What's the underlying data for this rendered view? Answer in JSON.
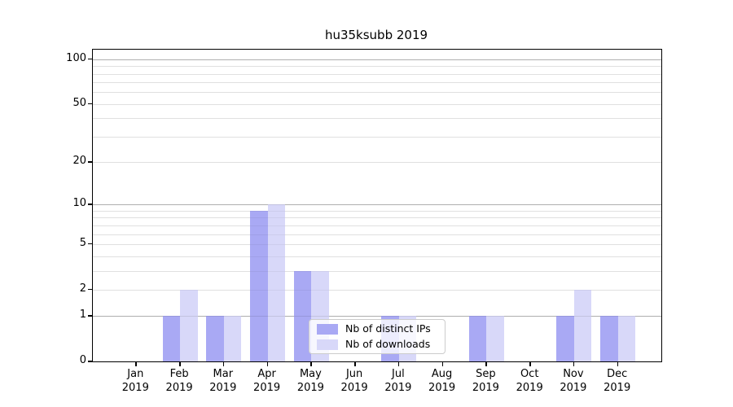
{
  "title": "hu35ksubb 2019",
  "colors": {
    "bar_distinct_ips": "#a9a9f4",
    "bar_downloads": "#d8d8f9",
    "axis": "#000000",
    "grid_major": "#c3c3c3",
    "grid_minor": "#ececec",
    "legend_border": "#cccccc"
  },
  "chart_data": {
    "type": "bar",
    "title": "hu35ksubb 2019",
    "categories": [
      "Jan",
      "Feb",
      "Mar",
      "Apr",
      "May",
      "Jun",
      "Jul",
      "Aug",
      "Sep",
      "Oct",
      "Nov",
      "Dec"
    ],
    "year": "2019",
    "series": [
      {
        "name": "Nb of distinct IPs",
        "color": "#a9a9f4",
        "values": [
          0,
          1,
          1,
          9,
          3,
          0,
          1,
          0,
          1,
          0,
          1,
          1
        ]
      },
      {
        "name": "Nb of downloads",
        "color": "#d8d8f9",
        "values": [
          0,
          2,
          1,
          10,
          3,
          0,
          1,
          0,
          1,
          0,
          2,
          1
        ]
      }
    ],
    "xlabel": "",
    "ylabel": "",
    "yscale": "log1p",
    "ylim": [
      0,
      116
    ],
    "ytick_values": [
      0,
      1,
      2,
      5,
      10,
      20,
      50,
      100
    ],
    "ytick_labels": [
      "0",
      "1",
      "2",
      "5",
      "10",
      "20",
      "50",
      "100"
    ],
    "major_gridlines": [
      1,
      10,
      100
    ],
    "minor_gridlines": [
      2,
      3,
      4,
      5,
      6,
      7,
      8,
      9,
      20,
      30,
      40,
      50,
      60,
      70,
      80,
      90
    ],
    "grid": "on",
    "legend_position": "lower right inside plot"
  }
}
